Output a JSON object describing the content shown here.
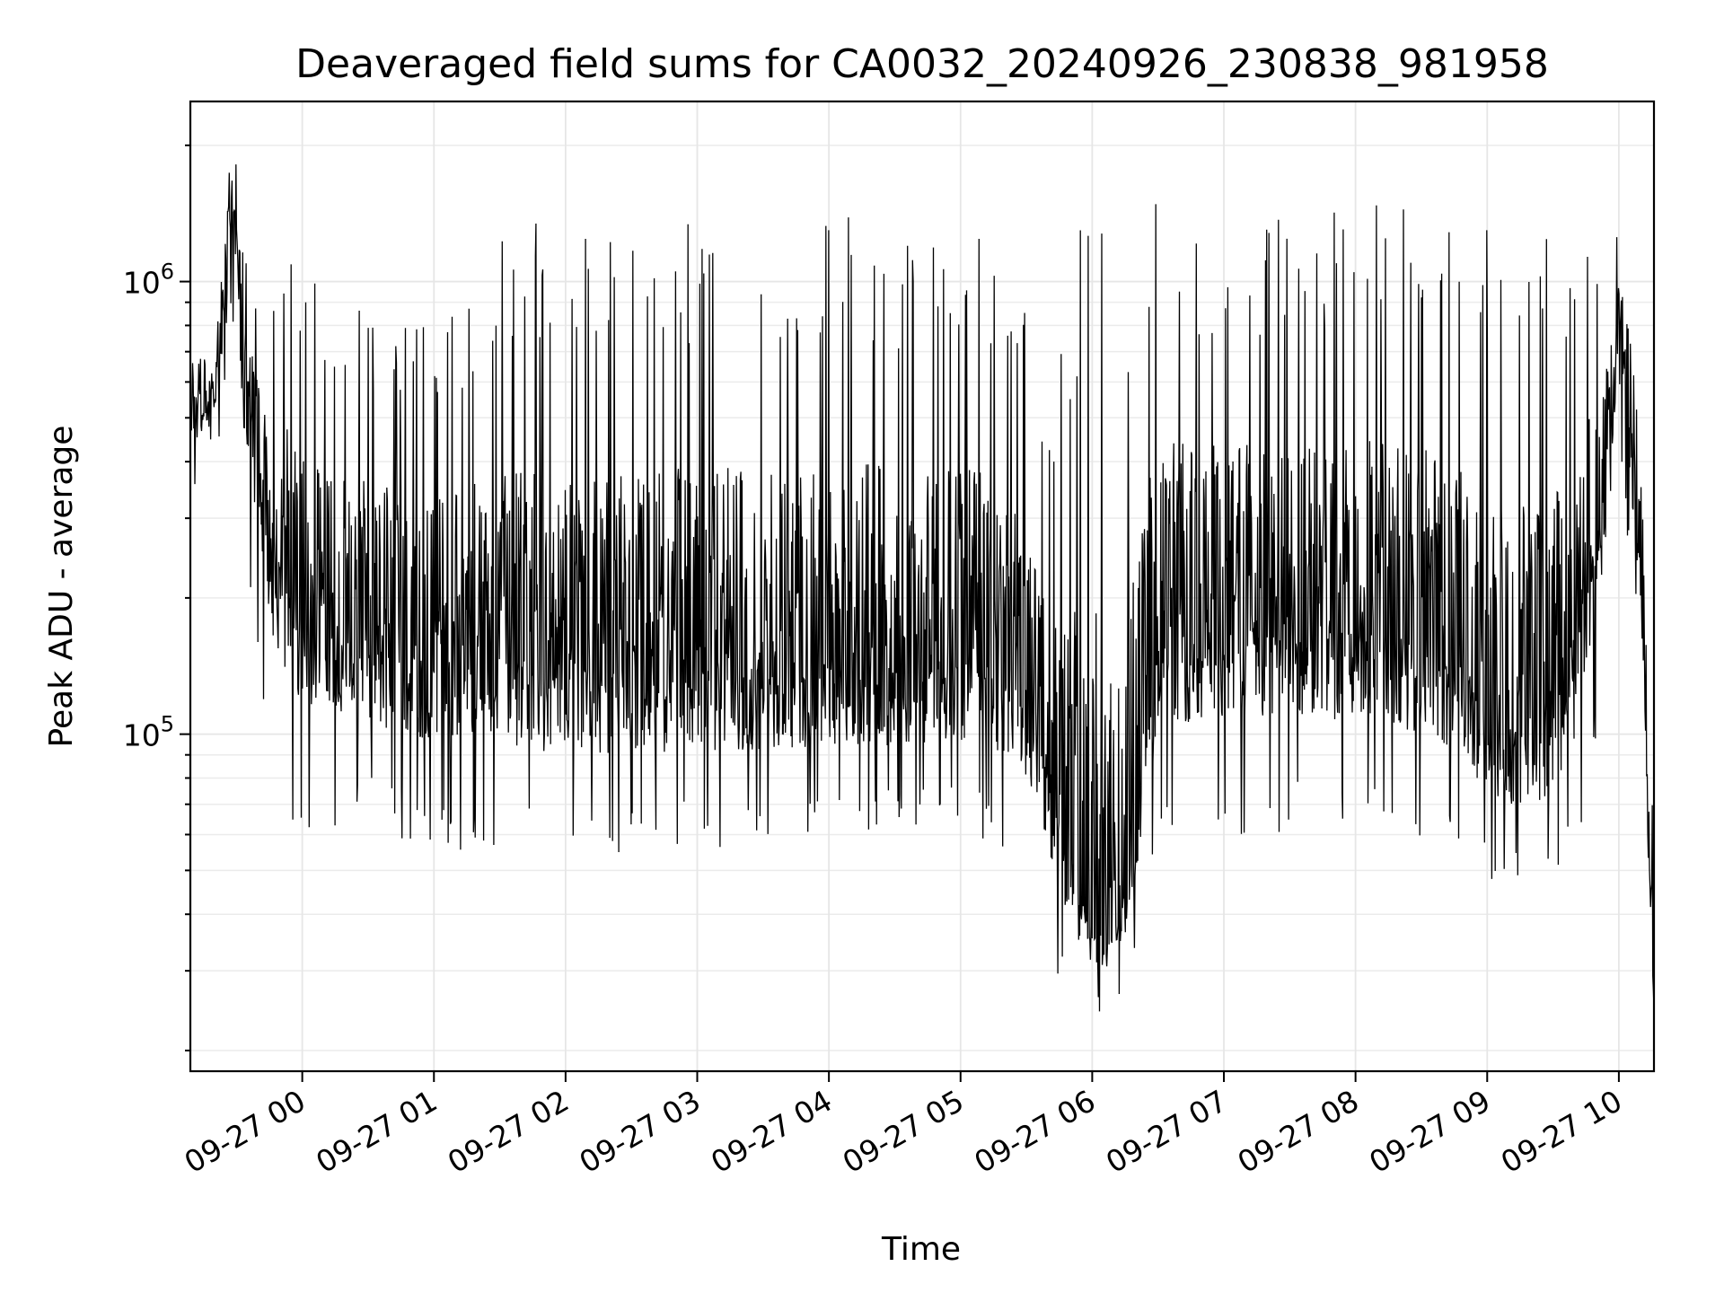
{
  "chart_data": {
    "type": "line",
    "title": "Deaveraged field sums for CA0032_20240926_230838_981958",
    "xlabel": "Time",
    "ylabel": "Peak ADU - average",
    "yscale": "log",
    "grid": true,
    "color": "#000000",
    "xlim": [
      "2024-09-26 23:09",
      "2024-09-27 10:16"
    ],
    "ylim": [
      18000,
      2500000
    ],
    "x_ticks": [
      {
        "value": "2024-09-27 00:00",
        "label": "09-27 00"
      },
      {
        "value": "2024-09-27 01:00",
        "label": "09-27 01"
      },
      {
        "value": "2024-09-27 02:00",
        "label": "09-27 02"
      },
      {
        "value": "2024-09-27 03:00",
        "label": "09-27 03"
      },
      {
        "value": "2024-09-27 04:00",
        "label": "09-27 04"
      },
      {
        "value": "2024-09-27 05:00",
        "label": "09-27 05"
      },
      {
        "value": "2024-09-27 06:00",
        "label": "09-27 06"
      },
      {
        "value": "2024-09-27 07:00",
        "label": "09-27 07"
      },
      {
        "value": "2024-09-27 08:00",
        "label": "09-27 08"
      },
      {
        "value": "2024-09-27 09:00",
        "label": "09-27 09"
      },
      {
        "value": "2024-09-27 10:00",
        "label": "09-27 10"
      }
    ],
    "y_ticks": [
      {
        "value": 100000,
        "base": "10",
        "exp": "5"
      },
      {
        "value": 1000000,
        "base": "10",
        "exp": "6"
      }
    ],
    "series": [
      {
        "x": [
          "2024-09-26 23:09",
          "2024-09-26 23:15",
          "2024-09-26 23:20",
          "2024-09-26 23:25",
          "2024-09-26 23:27",
          "2024-09-26 23:30",
          "2024-09-26 23:33",
          "2024-09-26 23:36",
          "2024-09-26 23:40",
          "2024-09-26 23:45",
          "2024-09-26 23:50",
          "2024-09-26 23:55",
          "2024-09-27 00:00",
          "2024-09-27 00:10",
          "2024-09-27 00:20",
          "2024-09-27 00:30",
          "2024-09-27 00:40",
          "2024-09-27 00:50",
          "2024-09-27 01:00",
          "2024-09-27 01:15",
          "2024-09-27 01:30",
          "2024-09-27 01:45",
          "2024-09-27 02:00",
          "2024-09-27 02:15",
          "2024-09-27 02:30",
          "2024-09-27 02:45",
          "2024-09-27 03:00",
          "2024-09-27 03:15",
          "2024-09-27 03:30",
          "2024-09-27 03:45",
          "2024-09-27 04:00",
          "2024-09-27 04:15",
          "2024-09-27 04:30",
          "2024-09-27 04:45",
          "2024-09-27 05:00",
          "2024-09-27 05:15",
          "2024-09-27 05:30",
          "2024-09-27 05:40",
          "2024-09-27 05:50",
          "2024-09-27 06:00",
          "2024-09-27 06:10",
          "2024-09-27 06:20",
          "2024-09-27 06:30",
          "2024-09-27 06:45",
          "2024-09-27 07:00",
          "2024-09-27 07:15",
          "2024-09-27 07:30",
          "2024-09-27 07:45",
          "2024-09-27 08:00",
          "2024-09-27 08:15",
          "2024-09-27 08:30",
          "2024-09-27 08:45",
          "2024-09-27 09:00",
          "2024-09-27 09:15",
          "2024-09-27 09:30",
          "2024-09-27 09:45",
          "2024-09-27 09:55",
          "2024-09-27 10:00",
          "2024-09-27 10:05",
          "2024-09-27 10:10",
          "2024-09-27 10:16"
        ],
        "y": [
          550000,
          520000,
          560000,
          1100000,
          1600000,
          1300000,
          800000,
          550000,
          420000,
          330000,
          250000,
          210000,
          190000,
          180000,
          170000,
          165000,
          160000,
          155000,
          150000,
          150000,
          148000,
          146000,
          145000,
          144000,
          142000,
          141000,
          140000,
          140000,
          140000,
          140000,
          140000,
          140000,
          140000,
          142000,
          145000,
          140000,
          120000,
          80000,
          50000,
          38000,
          35000,
          60000,
          170000,
          175000,
          180000,
          180000,
          180000,
          175000,
          170000,
          165000,
          160000,
          140000,
          110000,
          100000,
          110000,
          190000,
          400000,
          850000,
          500000,
          230000,
          25000
        ],
        "low": [
          330000,
          400000,
          420000,
          500000,
          400000,
          350000,
          250000,
          160000,
          120000,
          80000,
          70000,
          65000,
          60000,
          62000,
          60000,
          60000,
          58000,
          56000,
          55000,
          55000,
          53000,
          52000,
          52000,
          52000,
          52000,
          52000,
          54000,
          54000,
          55000,
          56000,
          57000,
          57000,
          58000,
          58000,
          59000,
          57000,
          50000,
          32000,
          26000,
          24000,
          25000,
          30000,
          55000,
          58000,
          60000,
          60000,
          60000,
          60000,
          60000,
          58000,
          55000,
          50000,
          45000,
          43000,
          45000,
          60000,
          180000,
          400000,
          220000,
          160000,
          23000
        ],
        "high": [
          700000,
          700000,
          750000,
          1900000,
          2100000,
          2000000,
          1300000,
          1100000,
          1150000,
          1200000,
          1300000,
          1200000,
          1100000,
          1000000,
          1000000,
          950000,
          1000000,
          900000,
          900000,
          1000000,
          1300000,
          1400000,
          1350000,
          1200000,
          1300000,
          1400000,
          1400000,
          1400000,
          1400000,
          1400000,
          1500000,
          1400000,
          1400000,
          1450000,
          1500000,
          1200000,
          900000,
          600000,
          1100000,
          1600000,
          1500000,
          1550000,
          1500000,
          1400000,
          1300000,
          1350000,
          1400000,
          1450000,
          1500000,
          1500000,
          1500000,
          1400000,
          1400000,
          1350000,
          1300000,
          1500000,
          1200000,
          1300000,
          1500000,
          1000000,
          60000
        ]
      }
    ]
  }
}
